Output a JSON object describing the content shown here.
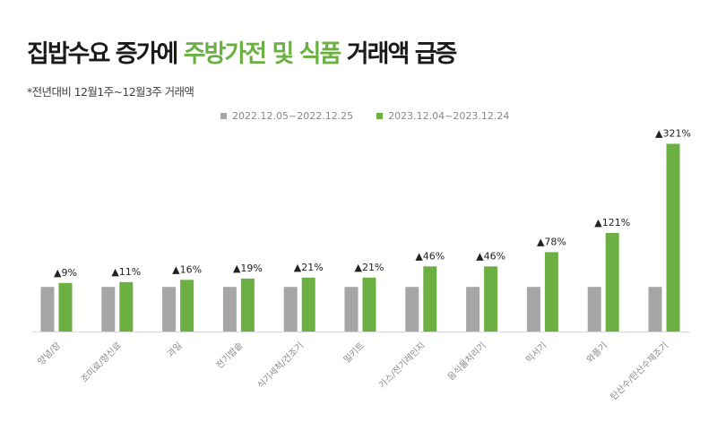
{
  "title": {
    "part1": "집밥수요 증가에 ",
    "accent": "주방가전 및 식품",
    "part2": " 거래액 급증"
  },
  "subtitle": "*전년대비 12월1주~12월3주 거래액",
  "colors": {
    "base": "#a6a6a6",
    "current": "#6cb043",
    "accent": "#6cb043"
  },
  "chart_data": {
    "type": "bar",
    "categories": [
      "양념/장",
      "조미료/향신료",
      "과일",
      "전기밥솥",
      "식기세척/건조기",
      "밀키트",
      "가스/전기레인지",
      "음식물처리기",
      "믹서기",
      "와플기",
      "탄산수/탄산수제조기"
    ],
    "series": [
      {
        "name": "2022.12.05~2022.12.25",
        "values": [
          1,
          1,
          1,
          1,
          1,
          1,
          1,
          1,
          1,
          1,
          1
        ],
        "color": "#a6a6a6"
      },
      {
        "name": "2023.12.04~2023.12.24",
        "values": [
          1.09,
          1.11,
          1.16,
          1.19,
          1.21,
          1.21,
          1.46,
          1.46,
          1.78,
          2.21,
          4.21
        ],
        "color": "#6cb043"
      }
    ],
    "data_labels": [
      "▲9%",
      "▲11%",
      "▲16%",
      "▲19%",
      "▲21%",
      "▲21%",
      "▲46%",
      "▲46%",
      "▲78%",
      "▲121%",
      "▲321%"
    ],
    "legend_position": "top",
    "grid": false,
    "ylim": [
      0,
      4.3
    ]
  }
}
